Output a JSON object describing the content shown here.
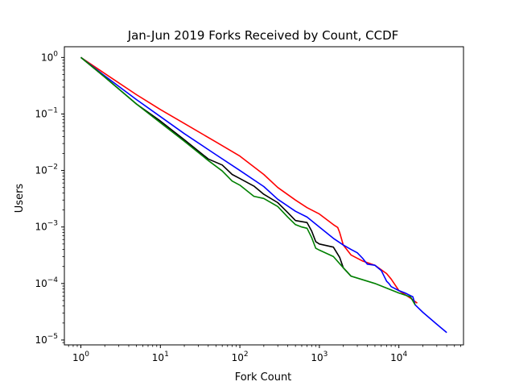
{
  "chart_data": {
    "type": "line",
    "title": "Jan-Jun 2019 Forks Received by Count, CCDF",
    "xlabel": "Fork Count",
    "ylabel": "Users",
    "xscale": "log",
    "yscale": "log",
    "xlim": [
      0.62,
      65000
    ],
    "ylim": [
      8.2e-06,
      1.55
    ],
    "grid": false,
    "legend": "none",
    "x_ticks": [
      {
        "value": 1,
        "base": "10",
        "exp": "0"
      },
      {
        "value": 10,
        "base": "10",
        "exp": "1"
      },
      {
        "value": 100,
        "base": "10",
        "exp": "2"
      },
      {
        "value": 1000,
        "base": "10",
        "exp": "3"
      },
      {
        "value": 10000,
        "base": "10",
        "exp": "4"
      }
    ],
    "y_ticks": [
      {
        "value": 1,
        "base": "10",
        "exp": "0"
      },
      {
        "value": 0.1,
        "base": "10",
        "exp": "−1"
      },
      {
        "value": 0.01,
        "base": "10",
        "exp": "−2"
      },
      {
        "value": 0.001,
        "base": "10",
        "exp": "−3"
      },
      {
        "value": 0.0001,
        "base": "10",
        "exp": "−4"
      },
      {
        "value": 1e-05,
        "base": "10",
        "exp": "−5"
      }
    ],
    "series": [
      {
        "color": "#ff0000",
        "x": [
          1,
          2,
          5,
          10,
          20,
          50,
          100,
          200,
          300,
          500,
          700,
          1000,
          1500,
          1700,
          1800,
          2000,
          2500,
          3500,
          5000,
          7000,
          8000,
          10000,
          14000,
          17000
        ],
        "y": [
          1,
          0.52,
          0.22,
          0.12,
          0.068,
          0.032,
          0.018,
          0.0085,
          0.005,
          0.003,
          0.0022,
          0.0017,
          0.0011,
          0.00098,
          0.0008,
          0.00048,
          0.00032,
          0.00025,
          0.00021,
          0.00015,
          0.00012,
          7.5e-05,
          5.5e-05,
          4.5e-05
        ]
      },
      {
        "color": "#0000ff",
        "x": [
          1,
          2,
          5,
          10,
          20,
          50,
          100,
          200,
          300,
          500,
          700,
          1000,
          1500,
          2000,
          2500,
          3000,
          3500,
          4000,
          5000,
          6000,
          7000,
          7500,
          8000,
          10000,
          12000,
          15000,
          16000,
          20000,
          30000,
          40000
        ],
        "y": [
          1,
          0.47,
          0.18,
          0.09,
          0.045,
          0.019,
          0.01,
          0.0052,
          0.0031,
          0.0019,
          0.0015,
          0.001,
          0.00063,
          0.00048,
          0.0004,
          0.00035,
          0.00028,
          0.00022,
          0.00021,
          0.00017,
          0.00011,
          0.0001,
          8.8e-05,
          7.5e-05,
          6.8e-05,
          5.8e-05,
          4.2e-05,
          3.1e-05,
          1.9e-05,
          1.35e-05
        ]
      },
      {
        "color": "#000000",
        "x": [
          1,
          2,
          5,
          10,
          20,
          40,
          60,
          80,
          100,
          150,
          200,
          300,
          400,
          500,
          700,
          800,
          900,
          1000,
          1500,
          1800,
          2000,
          2500
        ],
        "y": [
          1,
          0.45,
          0.15,
          0.075,
          0.035,
          0.016,
          0.0125,
          0.0085,
          0.0072,
          0.0053,
          0.0038,
          0.0027,
          0.0018,
          0.0013,
          0.0012,
          0.00085,
          0.00055,
          0.0005,
          0.00044,
          0.00029,
          0.00019,
          0.000135
        ]
      },
      {
        "color": "#008000",
        "x": [
          1,
          2,
          5,
          10,
          20,
          40,
          60,
          80,
          100,
          150,
          200,
          300,
          400,
          500,
          600,
          700,
          800,
          900,
          1000,
          1500,
          2000,
          2500,
          5000,
          10000,
          14000,
          16000
        ],
        "y": [
          1,
          0.45,
          0.15,
          0.07,
          0.033,
          0.015,
          0.0098,
          0.0065,
          0.0055,
          0.0035,
          0.0032,
          0.0023,
          0.0015,
          0.0011,
          0.001,
          0.00095,
          0.00065,
          0.00042,
          0.00039,
          0.0003,
          0.00019,
          0.000135,
          0.0001,
          6.8e-05,
          5.8e-05,
          4.2e-05
        ]
      }
    ]
  }
}
